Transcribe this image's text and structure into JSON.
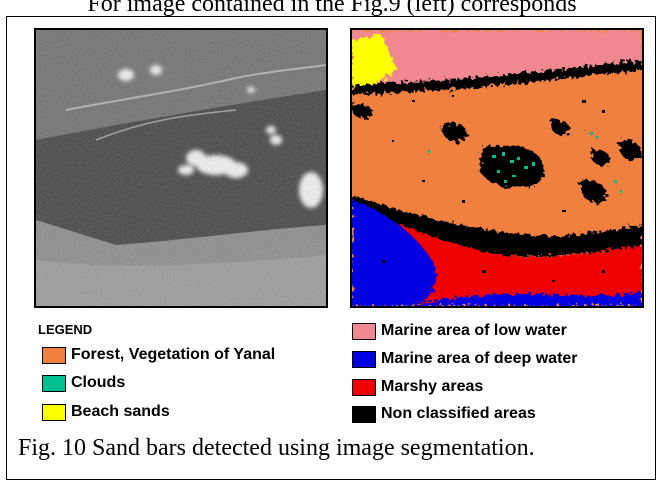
{
  "top_caption": "For image contained in the Fig.9 (left) corresponds",
  "legend": {
    "title": "LEGEND",
    "items": [
      {
        "label": "Forest, Vegetation of Yanal",
        "color": "#f08040"
      },
      {
        "label": "Clouds",
        "color": "#00c090"
      },
      {
        "label": "Beach sands",
        "color": "#ffff00"
      },
      {
        "label": "Marine area of low water",
        "color": "#f08890"
      },
      {
        "label": "Marine area of deep water",
        "color": "#0000e0"
      },
      {
        "label": "Marshy areas",
        "color": "#f00000"
      },
      {
        "label": "Non classified areas",
        "color": "#000000"
      }
    ]
  },
  "caption": "Fig. 10 Sand bars detected using image segmentation."
}
